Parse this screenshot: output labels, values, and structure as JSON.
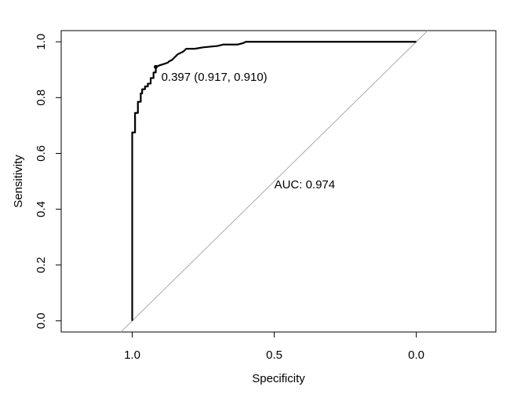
{
  "chart_data": {
    "type": "line",
    "title": "",
    "xlabel": "Specificity",
    "ylabel": "Sensitivity",
    "x_reversed": true,
    "xlim": [
      1.25,
      -0.28
    ],
    "ylim": [
      -0.04,
      1.04
    ],
    "x_ticks": [
      1.0,
      0.5,
      0.0
    ],
    "x_tick_labels": [
      "1.0",
      "0.5",
      "0.0"
    ],
    "y_ticks": [
      0.0,
      0.2,
      0.4,
      0.6,
      0.8,
      1.0
    ],
    "y_tick_labels": [
      "0.0",
      "0.2",
      "0.4",
      "0.6",
      "0.8",
      "1.0"
    ],
    "grid": false,
    "series": [
      {
        "x": [
          1.0,
          1.0,
          0.99,
          0.99,
          0.98,
          0.98,
          0.97,
          0.97,
          0.965,
          0.965,
          0.955,
          0.955,
          0.945,
          0.945,
          0.935,
          0.935,
          0.925,
          0.925,
          0.917,
          0.917,
          0.905,
          0.89,
          0.875,
          0.87,
          0.86,
          0.85,
          0.84,
          0.83,
          0.82,
          0.81,
          0.78,
          0.75,
          0.7,
          0.68,
          0.63,
          0.61,
          0.6,
          0.5,
          0.4,
          0.2,
          0.0
        ],
        "y": [
          0.0,
          0.675,
          0.675,
          0.745,
          0.745,
          0.785,
          0.785,
          0.815,
          0.815,
          0.83,
          0.83,
          0.84,
          0.84,
          0.85,
          0.85,
          0.87,
          0.87,
          0.89,
          0.89,
          0.91,
          0.915,
          0.92,
          0.925,
          0.93,
          0.935,
          0.945,
          0.955,
          0.96,
          0.965,
          0.975,
          0.975,
          0.98,
          0.985,
          0.99,
          0.99,
          0.995,
          1.0,
          1.0,
          1.0,
          1.0,
          1.0
        ]
      }
    ],
    "reference_line": {
      "x": [
        1.0,
        0.0
      ],
      "y": [
        0.0,
        1.0
      ]
    },
    "highlight_point": {
      "x": 0.917,
      "y": 0.91
    },
    "annotations": [
      {
        "text": "0.397 (0.917, 0.910)",
        "x": 0.917,
        "y": 0.91
      },
      {
        "text": "AUC: 0.974",
        "x": 0.5,
        "y": 0.5
      }
    ]
  }
}
